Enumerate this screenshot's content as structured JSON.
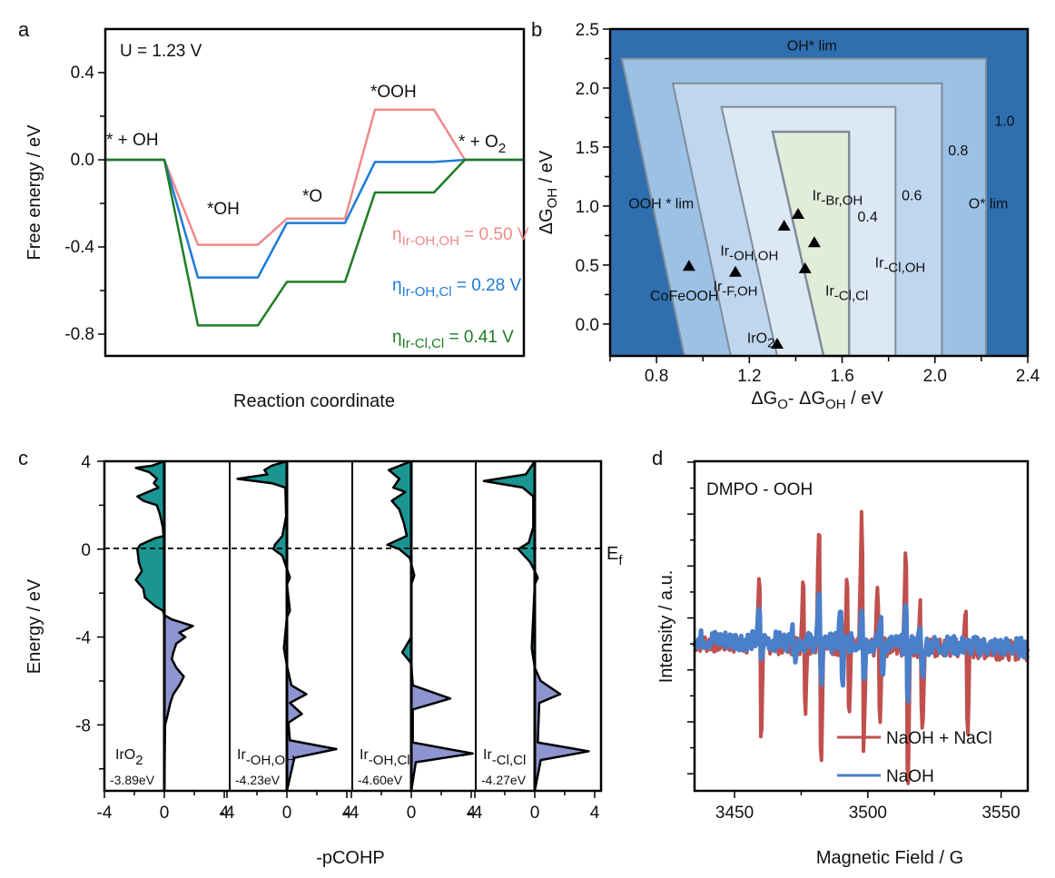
{
  "chart_data": [
    {
      "id": "a",
      "panel_label": "a",
      "type": "line",
      "title": "",
      "annotation": "U = 1.23 V",
      "xlabel": "Reaction coordinate",
      "ylabel": "Free energy / eV",
      "ylim": [
        -0.9,
        0.6
      ],
      "yticks": [
        0.4,
        0.0,
        -0.4,
        -0.8
      ],
      "ytick_labels": [
        "0.4",
        "0.0",
        "-0.4",
        "-0.8"
      ],
      "yminor": [
        0.2,
        -0.2,
        -0.6
      ],
      "states": [
        "* + OH",
        "*OH",
        "*O",
        "*OOH",
        "* + O2"
      ],
      "state_labels": [
        {
          "text": "* + OH",
          "state": 0
        },
        {
          "text": "*OH",
          "state": 1
        },
        {
          "text": "*O",
          "state": 2
        },
        {
          "text": "*OOH",
          "state": 3
        },
        {
          "text": "* + O",
          "sub": "2",
          "state": 4
        }
      ],
      "series": [
        {
          "name": "Ir-OH,OH",
          "color": "#ef8a8a",
          "values": [
            0.0,
            -0.39,
            -0.27,
            0.23,
            0.0
          ],
          "eta_label": {
            "prefix": "η",
            "sub": "Ir-OH,OH",
            "value": "= 0.50 V"
          }
        },
        {
          "name": "Ir-OH,Cl",
          "color": "#1f7ad6",
          "values": [
            0.0,
            -0.54,
            -0.29,
            -0.01,
            0.0
          ],
          "eta_label": {
            "prefix": "η",
            "sub": "Ir-OH,Cl",
            "value": "= 0.28 V"
          }
        },
        {
          "name": "Ir-Cl,Cl",
          "color": "#1e7d22",
          "values": [
            0.0,
            -0.76,
            -0.56,
            -0.15,
            0.0
          ],
          "eta_label": {
            "prefix": "η",
            "sub": "Ir-Cl,Cl",
            "value": "= 0.41 V"
          }
        }
      ]
    },
    {
      "id": "b",
      "panel_label": "b",
      "type": "heatmap",
      "title": "",
      "xlabel": "ΔG_O- ΔG_OH / eV",
      "ylabel": "ΔG_OH / eV",
      "xlim": [
        0.6,
        2.4
      ],
      "ylim": [
        -0.27,
        2.5
      ],
      "xticks": [
        0.8,
        1.2,
        1.6,
        2.0,
        2.4
      ],
      "xtick_labels": [
        "0.8",
        "1.2",
        "1.6",
        "2.0",
        "2.4"
      ],
      "xminor": [
        0.6,
        1.0,
        1.4,
        1.8,
        2.2
      ],
      "yticks": [
        2.5,
        2.0,
        1.5,
        1.0,
        0.5,
        0.0
      ],
      "ytick_labels": [
        "2.5",
        "2.0",
        "1.5",
        "1.0",
        "0.5",
        "0.0"
      ],
      "yminor": [
        2.25,
        1.75,
        1.25,
        0.75,
        0.25
      ],
      "contour_levels": [
        {
          "level": "1.0",
          "color": "#2f6fb0",
          "top": 2.25,
          "right": 2.22,
          "x_top_left": 0.65,
          "x_bottom_left": 0.92
        },
        {
          "level": "0.8",
          "color": "#9bc1e5",
          "top": 2.04,
          "right": 2.03,
          "x_top_left": 0.87,
          "x_bottom_left": 1.12
        },
        {
          "level": "0.6",
          "color": "#bfd6ee",
          "top": 1.84,
          "right": 1.83,
          "x_top_left": 1.08,
          "x_bottom_left": 1.32
        },
        {
          "level": "0.4",
          "color": "#dde8f5",
          "top": 1.63,
          "right": 1.63,
          "x_top_left": 1.3,
          "x_bottom_left": 1.52
        },
        {
          "level": "",
          "color": "#e1ecd9",
          "top": 1.63,
          "right": 1.63,
          "x_top_left": 1.3,
          "x_bottom_left": 1.52
        }
      ],
      "region_labels": [
        {
          "text": "OH* lim",
          "x": 1.47,
          "y": 2.32
        },
        {
          "text": "OOH * lim",
          "x": 0.82,
          "y": 0.98
        },
        {
          "text": "O* lim",
          "x": 2.23,
          "y": 0.98
        },
        {
          "text": "1.0",
          "x": 2.3,
          "y": 1.68
        },
        {
          "text": "0.8",
          "x": 2.1,
          "y": 1.43
        },
        {
          "text": "0.6",
          "x": 1.9,
          "y": 1.05
        },
        {
          "text": "0.4",
          "x": 1.71,
          "y": 0.87
        }
      ],
      "points": [
        {
          "name": "CoFeOOH",
          "x": 0.94,
          "y": 0.49,
          "label": "CoFeOOH",
          "label_x": 0.92,
          "label_y": 0.2
        },
        {
          "name": "Ir-F,OH",
          "x": 1.14,
          "y": 0.44,
          "label": "Ir",
          "sub": "-F,OH",
          "label_x": 1.14,
          "label_y": 0.28
        },
        {
          "name": "Ir-OH,OH",
          "x": 1.35,
          "y": 0.83,
          "label": "Ir",
          "sub": "-OH,OH",
          "label_x": 1.2,
          "label_y": 0.58
        },
        {
          "name": "Ir-Br,OH",
          "x": 1.41,
          "y": 0.93,
          "label": "Ir",
          "sub": "-Br,OH",
          "label_x": 1.58,
          "label_y": 1.05
        },
        {
          "name": "Ir-Cl,OH",
          "x": 1.48,
          "y": 0.69,
          "label": "Ir",
          "sub": "-Cl,OH",
          "label_x": 1.85,
          "label_y": 0.48
        },
        {
          "name": "Ir-Cl,Cl",
          "x": 1.44,
          "y": 0.47,
          "label": "Ir",
          "sub": "-Cl,Cl",
          "label_x": 1.62,
          "label_y": 0.24
        },
        {
          "name": "IrO2",
          "x": 1.32,
          "y": -0.17,
          "label": "IrO",
          "sub": "2",
          "label_x": 1.25,
          "label_y": -0.16
        }
      ]
    },
    {
      "id": "c",
      "panel_label": "c",
      "type": "area",
      "title": "",
      "xlabel": "-pCOHP",
      "ylabel": "Energy / eV",
      "ylim": [
        -11.0,
        4.0
      ],
      "subplot_xlim": [
        -5,
        5
      ],
      "yticks": [
        4,
        0,
        -4,
        -8
      ],
      "ytick_labels": [
        "4",
        "0",
        "-4",
        "-8"
      ],
      "yminor": [
        2,
        -2,
        -6,
        -10
      ],
      "xticks": [
        -4,
        0,
        4
      ],
      "xtick_labels": [
        "-4",
        "0",
        "4"
      ],
      "fermi_label": "E",
      "fermi_sub": "f",
      "antibonding_color": "#1a9591",
      "bonding_color": "#8c95cf",
      "subplots": [
        {
          "name": "IrO2",
          "label": "IrO",
          "sub": "2",
          "icohp": "-3.89eV",
          "profile": [
            [
              4,
              0
            ],
            [
              3.8,
              -0.8
            ],
            [
              3.7,
              -1.9
            ],
            [
              3.5,
              -1.0
            ],
            [
              3.2,
              -0.5
            ],
            [
              3.0,
              -0.7
            ],
            [
              2.8,
              -0.4
            ],
            [
              2.4,
              -1.8
            ],
            [
              2.2,
              -1.4
            ],
            [
              2.0,
              -0.5
            ],
            [
              1.6,
              -0.3
            ],
            [
              1.0,
              -0.1
            ],
            [
              0.6,
              -0.05
            ],
            [
              0.5,
              -0.6
            ],
            [
              0.2,
              -1.6
            ],
            [
              0,
              -1.8
            ],
            [
              -0.6,
              -1.7
            ],
            [
              -1.0,
              -1.5
            ],
            [
              -1.4,
              -1.9
            ],
            [
              -1.8,
              -1.4
            ],
            [
              -2.2,
              -1.3
            ],
            [
              -2.6,
              -0.6
            ],
            [
              -2.8,
              -0.1
            ],
            [
              -3.0,
              0.0
            ],
            [
              -3.2,
              0.5
            ],
            [
              -3.5,
              1.9
            ],
            [
              -3.8,
              1.0
            ],
            [
              -4.0,
              1.4
            ],
            [
              -4.3,
              0.8
            ],
            [
              -4.7,
              0.6
            ],
            [
              -5.0,
              0.5
            ],
            [
              -5.4,
              0.8
            ],
            [
              -5.8,
              1.3
            ],
            [
              -6.2,
              1.0
            ],
            [
              -6.6,
              0.6
            ],
            [
              -7.0,
              0.4
            ],
            [
              -7.6,
              0.2
            ],
            [
              -8.0,
              0.05
            ],
            [
              -11,
              0
            ]
          ]
        },
        {
          "name": "Ir-OH,OH",
          "label": "Ir",
          "sub": "-OH,OH",
          "icohp": "-4.23eV",
          "profile": [
            [
              4,
              0
            ],
            [
              3.8,
              -1.0
            ],
            [
              3.6,
              -1.5
            ],
            [
              3.4,
              -1.3
            ],
            [
              3.2,
              -3.3
            ],
            [
              3.0,
              -1.0
            ],
            [
              2.8,
              -0.1
            ],
            [
              1.5,
              -0.05
            ],
            [
              0.6,
              -0.3
            ],
            [
              0.2,
              -0.8
            ],
            [
              0,
              -0.9
            ],
            [
              -0.3,
              -0.3
            ],
            [
              -0.8,
              -0.05
            ],
            [
              -1.3,
              0.2
            ],
            [
              -1.6,
              0.0
            ],
            [
              -2.8,
              0.2
            ],
            [
              -3.1,
              0.0
            ],
            [
              -4.5,
              -0.2
            ],
            [
              -5.3,
              0.0
            ],
            [
              -6.2,
              0.3
            ],
            [
              -6.6,
              1.3
            ],
            [
              -7.0,
              0.2
            ],
            [
              -7.5,
              1.0
            ],
            [
              -7.9,
              0.1
            ],
            [
              -8.7,
              0.2
            ],
            [
              -9.1,
              3.3
            ],
            [
              -9.5,
              0.5
            ],
            [
              -11,
              0
            ]
          ]
        },
        {
          "name": "Ir-OH,Cl",
          "label": "Ir",
          "sub": "-OH,Cl",
          "icohp": "-4.60eV",
          "profile": [
            [
              4,
              0
            ],
            [
              3.6,
              -1.5
            ],
            [
              3.2,
              -0.8
            ],
            [
              2.8,
              -1.2
            ],
            [
              2.6,
              -0.4
            ],
            [
              2.2,
              -1.3
            ],
            [
              1.8,
              -0.8
            ],
            [
              1.2,
              -0.5
            ],
            [
              0.6,
              -0.3
            ],
            [
              0.2,
              -1.6
            ],
            [
              0,
              -0.8
            ],
            [
              -0.4,
              -0.1
            ],
            [
              -1.2,
              0.2
            ],
            [
              -1.6,
              0.0
            ],
            [
              -4.0,
              0.0
            ],
            [
              -4.7,
              -0.6
            ],
            [
              -5.2,
              0.0
            ],
            [
              -6.2,
              0.1
            ],
            [
              -6.8,
              2.6
            ],
            [
              -7.3,
              0.1
            ],
            [
              -8.8,
              0.1
            ],
            [
              -9.3,
              4.1
            ],
            [
              -9.7,
              0.3
            ],
            [
              -11,
              0
            ]
          ]
        },
        {
          "name": "Ir-Cl,Cl",
          "label": "Ir",
          "sub": "-Cl,Cl",
          "icohp": "-4.27eV",
          "profile": [
            [
              4,
              0
            ],
            [
              3.4,
              -0.6
            ],
            [
              3.1,
              -3.4
            ],
            [
              2.8,
              -0.8
            ],
            [
              2.4,
              -0.1
            ],
            [
              1.0,
              -0.1
            ],
            [
              0.3,
              -0.4
            ],
            [
              0,
              -1.1
            ],
            [
              -0.6,
              -0.3
            ],
            [
              -1.0,
              0.0
            ],
            [
              -1.3,
              0.2
            ],
            [
              -1.6,
              0.0
            ],
            [
              -4.5,
              -0.2
            ],
            [
              -5.4,
              0.0
            ],
            [
              -6.0,
              0.4
            ],
            [
              -6.6,
              1.7
            ],
            [
              -7.0,
              0.3
            ],
            [
              -8.8,
              0.2
            ],
            [
              -9.2,
              3.6
            ],
            [
              -9.6,
              0.4
            ],
            [
              -11,
              0
            ]
          ]
        }
      ]
    },
    {
      "id": "d",
      "panel_label": "d",
      "type": "line",
      "title": "DMPO - OOH",
      "xlabel": "Magnetic Field / G",
      "ylabel": "Intensity / a.u.",
      "xlim": [
        3435,
        3560
      ],
      "ylim": [
        -1.0,
        1.0
      ],
      "xticks": [
        3450,
        3500,
        3550
      ],
      "xtick_labels": [
        "3450",
        "3500",
        "3550"
      ],
      "xminor": [
        3475,
        3525
      ],
      "legend": "bottom-right",
      "series": [
        {
          "name": "NaOH + NaCl",
          "color": "#c0504d",
          "peaks": [
            [
              3459.5,
              0.45,
              -0.62
            ],
            [
              3476,
              0.42,
              -0.45
            ],
            [
              3482,
              0.85,
              -0.78
            ],
            [
              3492.5,
              0.42,
              -0.5
            ],
            [
              3498,
              0.82,
              -0.7
            ],
            [
              3504,
              0.38,
              -0.5
            ],
            [
              3514.5,
              0.65,
              -0.92
            ],
            [
              3520,
              0.25,
              -0.55
            ],
            [
              3537,
              0.32,
              -0.6
            ]
          ]
        },
        {
          "name": "NaOH",
          "color": "#4a7fc9",
          "peaks": [
            [
              3459.5,
              0.18,
              -0.12
            ],
            [
              3472,
              0.15,
              -0.1
            ],
            [
              3482,
              0.3,
              -0.25
            ],
            [
              3490,
              0.2,
              -0.28
            ],
            [
              3498,
              0.25,
              -0.25
            ],
            [
              3505,
              0.16,
              -0.2
            ],
            [
              3514.5,
              0.2,
              -0.35
            ],
            [
              3520,
              0.1,
              -0.2
            ]
          ]
        }
      ]
    }
  ]
}
